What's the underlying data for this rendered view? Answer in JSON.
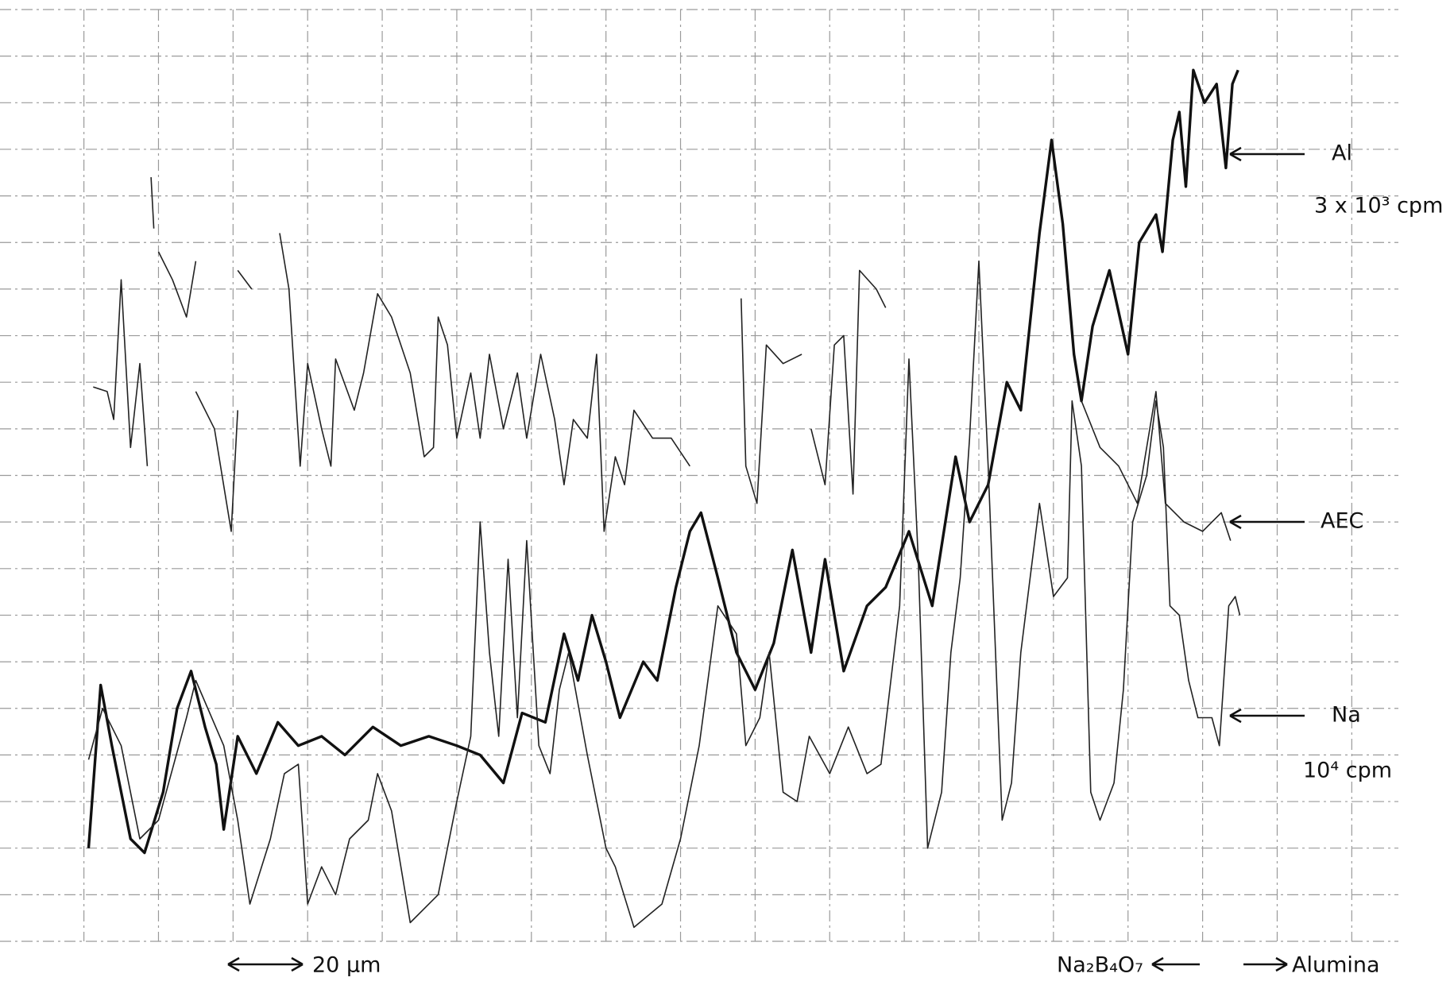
{
  "chart_data": {
    "type": "line",
    "xlim": [
      -10,
      140
    ],
    "ylim": [
      0,
      20
    ],
    "xticks": [
      -1,
      7,
      15,
      23,
      31,
      39,
      47,
      55,
      63,
      71,
      79,
      87,
      95,
      103,
      111,
      119,
      127,
      135
    ],
    "yticks": [
      0,
      1,
      2,
      3,
      4,
      5,
      6,
      7,
      8,
      9,
      10,
      11,
      12,
      13,
      14,
      15,
      16,
      17,
      18,
      19,
      20
    ],
    "grid": true,
    "series": [
      {
        "name": "Al",
        "color": "#111111",
        "bold": true,
        "scale_label": "3 x 10³ cpm",
        "x": [
          -0.5,
          0.8,
          2,
          4,
          5.5,
          7.5,
          9,
          10.5,
          12,
          13.2,
          14,
          15.5,
          17.5,
          19.8,
          22,
          24.5,
          27,
          30,
          33,
          36,
          39,
          41.5,
          44,
          46,
          48.5,
          50.5,
          52,
          53.5,
          55,
          56.5,
          59,
          60.5,
          62.5,
          64,
          65.2,
          67,
          69,
          71,
          73,
          75,
          77,
          78.5,
          80.5,
          83,
          85,
          87.5,
          90,
          92.5,
          94,
          96,
          98,
          99.5,
          101.5,
          102.8,
          104,
          105.2,
          106,
          107.2,
          109,
          111,
          112.2,
          114,
          114.7,
          115.8,
          116.5,
          117.2,
          118,
          119.2,
          120.5,
          121.5,
          122.2,
          122.8
        ],
        "values": [
          2.0,
          5.5,
          4.2,
          2.2,
          1.9,
          3.2,
          5.0,
          5.8,
          4.6,
          3.8,
          2.4,
          4.4,
          3.6,
          4.7,
          4.2,
          4.4,
          4.0,
          4.6,
          4.2,
          4.4,
          4.2,
          4.0,
          3.4,
          4.9,
          4.7,
          6.6,
          5.6,
          7.0,
          6.0,
          4.8,
          6.0,
          5.6,
          7.6,
          8.8,
          9.2,
          7.8,
          6.2,
          5.4,
          6.4,
          8.4,
          6.2,
          8.2,
          5.8,
          7.2,
          7.6,
          8.8,
          7.2,
          10.4,
          9.0,
          9.8,
          12.0,
          11.4,
          15.2,
          17.2,
          15.4,
          12.6,
          11.6,
          13.2,
          14.4,
          12.6,
          15.0,
          15.6,
          14.8,
          17.2,
          17.8,
          16.2,
          18.7,
          18.0,
          18.4,
          16.6,
          18.4,
          18.7
        ]
      },
      {
        "name": "AEC",
        "color": "#222222",
        "bold": false,
        "x": [
          0,
          1.5,
          2.2,
          3,
          4,
          5,
          5.8,
          null,
          6.2,
          6.5,
          null,
          7,
          8.5,
          10,
          11,
          null,
          11,
          13,
          14.8,
          15.5,
          null,
          15.5,
          17,
          null,
          20,
          21,
          22.2,
          23,
          24.5,
          25.5,
          26,
          28,
          29,
          30.5,
          32,
          34,
          35.5,
          36.5,
          37,
          38,
          39,
          40.5,
          41.5,
          42.5,
          44,
          45.5,
          46.5,
          48,
          49.5,
          50.5,
          51.5,
          53,
          54,
          54.8,
          56,
          57,
          58,
          60,
          62,
          64,
          null,
          69.5,
          70,
          71.2,
          72.2,
          74,
          76,
          null,
          77,
          78.5,
          79.5,
          80.5,
          81.5,
          82.2,
          84,
          85,
          null,
          106,
          108,
          110,
          112,
          114,
          115,
          117,
          119,
          121,
          122
        ],
        "values": [
          11.9,
          11.8,
          11.2,
          14.2,
          10.6,
          12.4,
          10.2,
          null,
          16.4,
          15.3,
          null,
          14.8,
          14.2,
          13.4,
          14.6,
          null,
          11.8,
          11.0,
          8.8,
          11.4,
          null,
          14.4,
          14.0,
          null,
          15.2,
          14.0,
          10.2,
          12.4,
          11.0,
          10.2,
          12.5,
          11.4,
          12.2,
          13.9,
          13.4,
          12.2,
          10.4,
          10.6,
          13.4,
          12.8,
          10.8,
          12.2,
          10.8,
          12.6,
          11.0,
          12.2,
          10.8,
          12.6,
          11.2,
          9.8,
          11.2,
          10.8,
          12.6,
          8.8,
          10.4,
          9.8,
          11.4,
          10.8,
          10.8,
          10.2,
          null,
          13.8,
          10.2,
          9.4,
          12.8,
          12.4,
          12.6,
          null,
          11.0,
          9.8,
          12.8,
          13.0,
          9.6,
          14.4,
          14.0,
          13.6,
          null,
          11.6,
          10.6,
          10.2,
          9.4,
          11.8,
          9.4,
          9.0,
          8.8,
          9.2,
          8.6
        ]
      },
      {
        "name": "Na",
        "color": "#222222",
        "bold": false,
        "scale_label": "10⁴ cpm",
        "x": [
          -0.5,
          1,
          3,
          5,
          7,
          10,
          11,
          14,
          15.5,
          16.8,
          19,
          20.5,
          22,
          23,
          24.5,
          26,
          27.5,
          29.5,
          30.5,
          32,
          34,
          37,
          39,
          40.5,
          41.5,
          42.5,
          43.5,
          44.5,
          45.5,
          46.5,
          47.8,
          49,
          50,
          51,
          53,
          55,
          56,
          58,
          61,
          63,
          65,
          67,
          69,
          70,
          71.5,
          72.5,
          74,
          75.5,
          76.8,
          79,
          81,
          83,
          84.5,
          86.5,
          87.5,
          88.5,
          89.5,
          91,
          92,
          93,
          94,
          95,
          96,
          97.5,
          98.5,
          99.5,
          100.5,
          101.5,
          103,
          104.5,
          105,
          106,
          107,
          108,
          109.5,
          110.5,
          111.5,
          113,
          114,
          114.8,
          115.5,
          116.5,
          117.5,
          118.5,
          120,
          120.8,
          121.8,
          122.5,
          123
        ],
        "values": [
          3.9,
          5.0,
          4.2,
          2.2,
          2.6,
          4.8,
          5.6,
          4.2,
          2.6,
          0.8,
          2.2,
          3.6,
          3.8,
          0.8,
          1.6,
          1.0,
          2.2,
          2.6,
          3.6,
          2.8,
          0.4,
          1.0,
          3.0,
          4.4,
          9.0,
          6.2,
          4.4,
          8.2,
          4.8,
          8.6,
          4.2,
          3.6,
          5.4,
          6.2,
          4.0,
          2.0,
          1.6,
          0.3,
          0.8,
          2.2,
          4.2,
          7.2,
          6.6,
          4.2,
          4.8,
          6.2,
          3.2,
          3.0,
          4.4,
          3.6,
          4.6,
          3.6,
          3.8,
          7.2,
          12.5,
          8.2,
          2.0,
          3.2,
          6.2,
          7.8,
          10.8,
          14.6,
          10.2,
          2.6,
          3.4,
          6.2,
          7.8,
          9.4,
          7.4,
          7.8,
          11.6,
          10.2,
          3.2,
          2.6,
          3.4,
          5.4,
          9.0,
          10.0,
          11.6,
          10.6,
          7.2,
          7.0,
          5.6,
          4.8,
          4.8,
          4.2,
          7.2,
          7.4,
          7.0
        ]
      }
    ],
    "annotations": [
      "20 µm",
      "Na₂B₄O₇",
      "Alumina"
    ]
  }
}
